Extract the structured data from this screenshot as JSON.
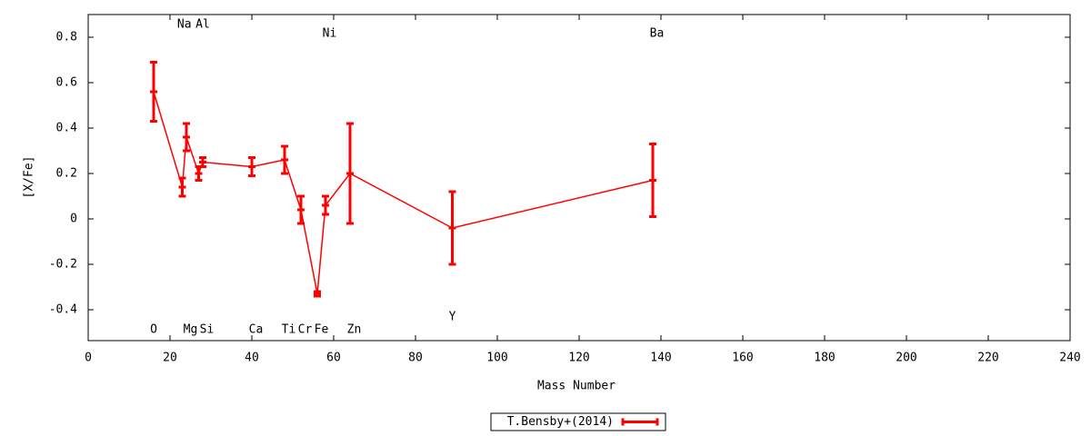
{
  "chart_data": {
    "type": "errorbar-line",
    "xlabel": "Mass Number",
    "ylabel": "[X/Fe]",
    "xlim": [
      0,
      240
    ],
    "ylim": [
      -0.536,
      0.9
    ],
    "xticks": [
      0,
      20,
      40,
      60,
      80,
      100,
      120,
      140,
      160,
      180,
      200,
      220,
      240
    ],
    "yticks": [
      -0.4,
      -0.2,
      0,
      0.2,
      0.4,
      0.6,
      0.8
    ],
    "legend": "bottom",
    "series": [
      {
        "name": "T.Bensby+(2014)",
        "color": "#ff0000",
        "x": [
          16,
          23,
          24,
          27,
          28,
          40,
          48,
          52,
          56,
          58,
          64,
          89,
          138
        ],
        "values": [
          0.56,
          0.14,
          0.36,
          0.2,
          0.25,
          0.23,
          0.26,
          0.04,
          -0.33,
          0.06,
          0.2,
          -0.04,
          0.17
        ],
        "errors": [
          0.13,
          0.04,
          0.06,
          0.03,
          0.02,
          0.04,
          0.06,
          0.06,
          0.01,
          0.04,
          0.22,
          0.16,
          0.16
        ]
      }
    ],
    "annotations": [
      {
        "text": "Na",
        "x": 23.5,
        "y": 0.856
      },
      {
        "text": "Al",
        "x": 28,
        "y": 0.856
      },
      {
        "text": "Ni",
        "x": 59,
        "y": 0.816
      },
      {
        "text": "Ba",
        "x": 139,
        "y": 0.816
      },
      {
        "text": "O",
        "x": 16,
        "y": -0.488
      },
      {
        "text": "Mg",
        "x": 25,
        "y": -0.488
      },
      {
        "text": "Si",
        "x": 29,
        "y": -0.488
      },
      {
        "text": "Ca",
        "x": 41,
        "y": -0.488
      },
      {
        "text": "Ti",
        "x": 49,
        "y": -0.488
      },
      {
        "text": "Cr",
        "x": 53,
        "y": -0.488
      },
      {
        "text": "Fe",
        "x": 57,
        "y": -0.488
      },
      {
        "text": "Zn",
        "x": 65,
        "y": -0.488
      },
      {
        "text": "Y",
        "x": 89,
        "y": -0.432
      }
    ]
  }
}
